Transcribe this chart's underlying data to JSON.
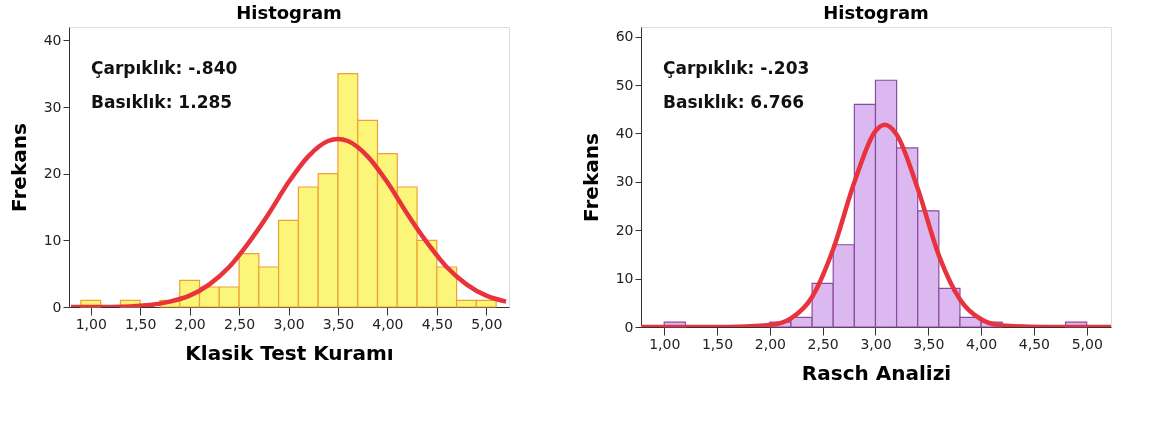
{
  "chart_data": [
    {
      "type": "histogram",
      "title": "Histogram",
      "xlabel": "Klasik Test Kuramı",
      "ylabel": "Frekans",
      "bins": [
        0.9,
        1.1,
        1.3,
        1.5,
        1.7,
        1.9,
        2.1,
        2.3,
        2.5,
        2.7,
        2.9,
        3.1,
        3.3,
        3.5,
        3.7,
        3.9,
        4.1,
        4.3,
        4.5,
        4.7,
        4.9,
        5.1
      ],
      "values": [
        1,
        0,
        1,
        0,
        1,
        4,
        3,
        3,
        8,
        6,
        13,
        18,
        20,
        35,
        28,
        23,
        18,
        10,
        6,
        1,
        1
      ],
      "color": "#fbf57a",
      "series": [
        {
          "type": "line",
          "color": "#e8323c",
          "x": [
            0.8,
            1.2,
            1.6,
            1.8,
            2.0,
            2.2,
            2.4,
            2.6,
            2.8,
            3.0,
            3.2,
            3.4,
            3.5,
            3.6,
            3.8,
            4.0,
            4.2,
            4.4,
            4.6,
            4.8,
            5.0,
            5.2
          ],
          "values": [
            0,
            0,
            0.3,
            0.8,
            1.7,
            3.4,
            6.0,
            9.7,
            14.0,
            18.7,
            22.6,
            24.9,
            25.2,
            24.9,
            22.6,
            18.7,
            14.0,
            9.7,
            6.0,
            3.4,
            1.7,
            0.8
          ]
        }
      ],
      "xlim": [
        0.78,
        5.23
      ],
      "ylim": [
        0,
        42
      ],
      "xticks": [
        {
          "value": 1,
          "label": "1,00"
        },
        {
          "value": 1.5,
          "label": "1,50"
        },
        {
          "value": 2,
          "label": "2,00"
        },
        {
          "value": 2.5,
          "label": "2,50"
        },
        {
          "value": 3,
          "label": "3,00"
        },
        {
          "value": 3.5,
          "label": "3,50"
        },
        {
          "value": 4,
          "label": "4,00"
        },
        {
          "value": 4.5,
          "label": "4,50"
        },
        {
          "value": 5,
          "label": "5,00"
        }
      ],
      "yticks": [
        0,
        10,
        20,
        30,
        40
      ],
      "annotations": [
        "Çarpıklık: -.840",
        "Basıklık: 1.285"
      ],
      "grid": false,
      "legend": false
    },
    {
      "type": "histogram",
      "title": "Histogram",
      "xlabel": "Rasch Analizi",
      "ylabel": "Frekans",
      "bins": [
        1.0,
        1.2,
        1.4,
        1.6,
        1.8,
        2.0,
        2.2,
        2.4,
        2.6,
        2.8,
        3.0,
        3.2,
        3.4,
        3.6,
        3.8,
        4.0,
        4.2,
        4.4,
        4.6,
        4.8,
        5.0
      ],
      "values": [
        1,
        0,
        0,
        0,
        0,
        1,
        2,
        9,
        17,
        46,
        51,
        37,
        24,
        8,
        2,
        1,
        0,
        0,
        0,
        1
      ],
      "color": "#dcb8f0",
      "series": [
        {
          "type": "line",
          "color": "#e8323c",
          "x": [
            0.78,
            1.6,
            2.0,
            2.2,
            2.4,
            2.6,
            2.8,
            3.0,
            3.09,
            3.2,
            3.4,
            3.6,
            3.8,
            4.0,
            4.2,
            4.6,
            5.23
          ],
          "values": [
            0,
            0,
            0.4,
            1.8,
            6.2,
            16.1,
            29.9,
            40.5,
            41.8,
            39.8,
            28.6,
            14.8,
            5.7,
            1.6,
            0.3,
            0,
            0
          ]
        }
      ],
      "xlim": [
        0.78,
        5.23
      ],
      "ylim": [
        0,
        62
      ],
      "xticks": [
        {
          "value": 1,
          "label": "1,00"
        },
        {
          "value": 1.5,
          "label": "1,50"
        },
        {
          "value": 2,
          "label": "2,00"
        },
        {
          "value": 2.5,
          "label": "2,50"
        },
        {
          "value": 3,
          "label": "3,00"
        },
        {
          "value": 3.5,
          "label": "3,50"
        },
        {
          "value": 4,
          "label": "4,00"
        },
        {
          "value": 4.5,
          "label": "4,50"
        },
        {
          "value": 5,
          "label": "5,00"
        }
      ],
      "yticks": [
        0,
        10,
        20,
        30,
        40,
        50,
        60
      ],
      "annotations": [
        "Çarpıklık: -.203",
        "Basıklık: 6.766"
      ],
      "grid": false,
      "legend": false
    }
  ]
}
